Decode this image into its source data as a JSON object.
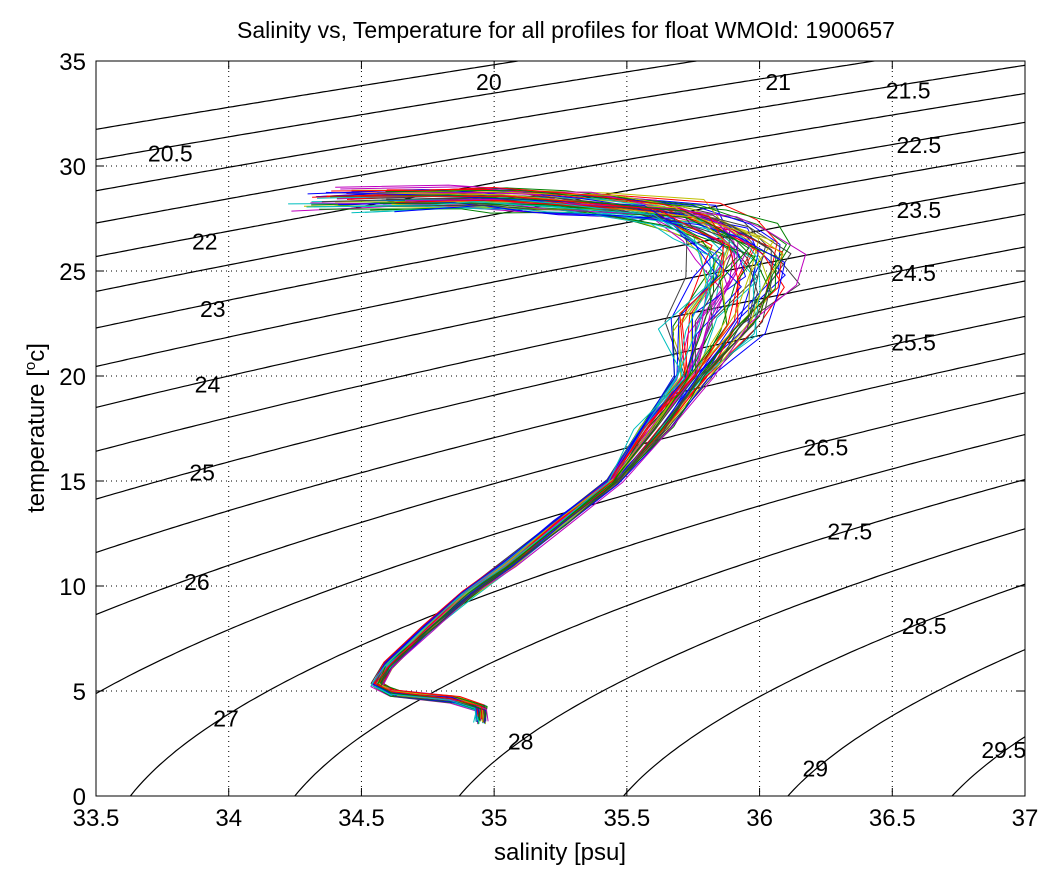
{
  "chart_data": {
    "type": "line",
    "title": "Salinity vs, Temperature for all profiles for float WMOId: 1900657",
    "xlabel": "salinity [psu]",
    "ylabel_main": "temperature [",
    "ylabel_sup": "o",
    "ylabel_end": "c]",
    "xlim": [
      33.5,
      37
    ],
    "ylim": [
      0,
      35
    ],
    "xticks": [
      33.5,
      34,
      34.5,
      35,
      35.5,
      36,
      36.5,
      37
    ],
    "xtick_labels": [
      "33.5",
      "34",
      "34.5",
      "35",
      "35.5",
      "36",
      "36.5",
      "37"
    ],
    "yticks": [
      0,
      5,
      10,
      15,
      20,
      25,
      30,
      35
    ],
    "ytick_labels": [
      "0",
      "5",
      "10",
      "15",
      "20",
      "25",
      "30",
      "35"
    ],
    "grid": true,
    "isopycnals": [
      {
        "sigma": 20,
        "label": "20",
        "label_at": [
          34.98,
          34.0
        ]
      },
      {
        "sigma": 20.5,
        "label": "20.5",
        "label_at": [
          33.78,
          30.6
        ]
      },
      {
        "sigma": 21,
        "label": "21",
        "label_at": [
          36.07,
          34.0
        ]
      },
      {
        "sigma": 21.5,
        "label": "21.5",
        "label_at": [
          36.56,
          33.6
        ]
      },
      {
        "sigma": 22,
        "label": "22",
        "label_at": [
          33.91,
          26.4
        ]
      },
      {
        "sigma": 22.5,
        "label": "22.5",
        "label_at": [
          36.6,
          31.0
        ]
      },
      {
        "sigma": 23,
        "label": "23",
        "label_at": [
          33.94,
          23.2
        ]
      },
      {
        "sigma": 23.5,
        "label": "23.5",
        "label_at": [
          36.6,
          27.9
        ]
      },
      {
        "sigma": 24,
        "label": "24",
        "label_at": [
          33.92,
          19.6
        ]
      },
      {
        "sigma": 24.5,
        "label": "24.5",
        "label_at": [
          36.58,
          24.9
        ]
      },
      {
        "sigma": 25,
        "label": "25",
        "label_at": [
          33.9,
          15.4
        ]
      },
      {
        "sigma": 25.5,
        "label": "25.5",
        "label_at": [
          36.58,
          21.6
        ]
      },
      {
        "sigma": 26,
        "label": "26",
        "label_at": [
          33.88,
          10.2
        ]
      },
      {
        "sigma": 26.5,
        "label": "26.5",
        "label_at": [
          36.25,
          16.6
        ]
      },
      {
        "sigma": 27,
        "label": "27",
        "label_at": [
          33.99,
          3.7
        ]
      },
      {
        "sigma": 27.5,
        "label": "27.5",
        "label_at": [
          36.34,
          12.6
        ]
      },
      {
        "sigma": 28,
        "label": "28",
        "label_at": [
          35.1,
          2.6
        ]
      },
      {
        "sigma": 28.5,
        "label": "28.5",
        "label_at": [
          36.62,
          8.1
        ]
      },
      {
        "sigma": 29,
        "label": "29",
        "label_at": [
          36.21,
          1.3
        ]
      },
      {
        "sigma": 29.5,
        "label": "29.5",
        "label_at": [
          36.92,
          2.2
        ]
      }
    ],
    "profile_colors": [
      "#0000ff",
      "#008000",
      "#ff0000",
      "#00bfbf",
      "#bf00bf",
      "#bfbf00",
      "#404040"
    ],
    "mean_profile": {
      "salinity": [
        34.45,
        34.9,
        35.1,
        35.35,
        35.7,
        35.85,
        35.95,
        35.95,
        35.85,
        35.75,
        35.6,
        35.45,
        35.25,
        35.05,
        34.9,
        34.75,
        34.6,
        34.56,
        34.62,
        34.85,
        34.95,
        34.95
      ],
      "temperature": [
        28.4,
        28.5,
        28.4,
        28.2,
        27.8,
        27.0,
        26.0,
        24.5,
        22.5,
        20.0,
        17.5,
        15.0,
        13.0,
        11.0,
        9.6,
        8.0,
        6.2,
        5.3,
        4.9,
        4.6,
        4.2,
        3.6
      ]
    },
    "profile_count": 60
  }
}
